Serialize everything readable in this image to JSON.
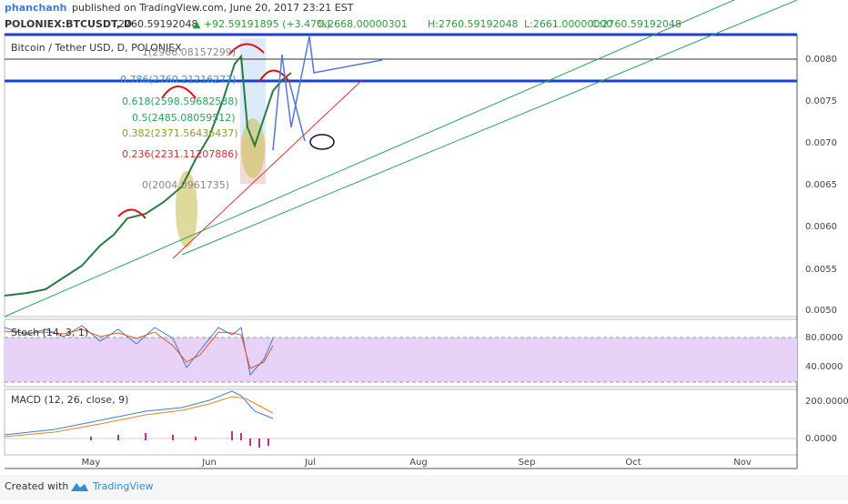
{
  "header": {
    "author": "phanchanh",
    "published": "published on TradingView.com, June 20, 2017 23:21 EST",
    "symbol": "POLONIEX:BTCUSDT, D",
    "price": "2760.59192048",
    "change": "▲ +92.59191895 (+3.47%)",
    "open": "O:2668.00000301",
    "high": "H:2760.59192048",
    "low": "L:2661.00000000",
    "close": "C:2760.59192048"
  },
  "main_panel": {
    "title": "Bitcoin / Tether USD, D, POLONIEX",
    "price_axis": [
      "0.0080",
      "0.0075",
      "0.0070",
      "0.0065",
      "0.0060",
      "0.0055",
      "0.0050"
    ],
    "fib_labels": [
      "1(2966.08157299)",
      "0.786(2760.21216277)",
      "0.618(2598.59682588)",
      "0.5(2485.08059512)",
      "0.382(2371.56436437)",
      "0.236(2231.11207886)",
      "0(2004.0961735)"
    ]
  },
  "stoch_panel": {
    "title": "Stoch (14, 3, 1)",
    "axis": [
      "80.0000",
      "40.0000"
    ]
  },
  "macd_panel": {
    "title": "MACD (12, 26, close, 9)",
    "axis": [
      "200.0000",
      "0.0000"
    ]
  },
  "time_axis": [
    "May",
    "Jun",
    "Jul",
    "Aug",
    "Sep",
    "Oct",
    "Nov"
  ],
  "footer": {
    "created": "Created with",
    "brand": "TradingView"
  }
}
